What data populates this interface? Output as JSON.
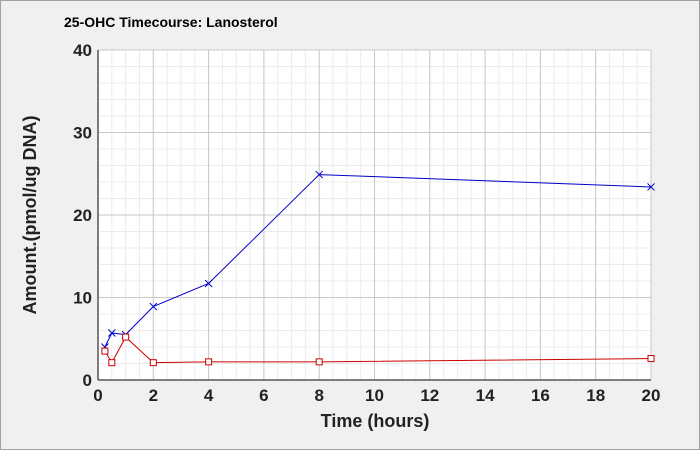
{
  "chart_data": {
    "type": "line",
    "title": "25-OHC Timecourse: Lanosterol",
    "xlabel": "Time (hours)",
    "ylabel": "Amount.(pmol/ug DNA)",
    "xlim": [
      0,
      20
    ],
    "ylim": [
      0,
      40
    ],
    "x_ticks": [
      0,
      2,
      4,
      6,
      8,
      10,
      12,
      14,
      16,
      18,
      20
    ],
    "y_ticks": [
      0,
      10,
      20,
      30,
      40
    ],
    "x_tick_labels": [
      "0",
      "2",
      "4",
      "6",
      "8",
      "10",
      "12",
      "14",
      "16",
      "18",
      "20"
    ],
    "y_tick_labels": [
      "0",
      "10",
      "20",
      "30",
      "40"
    ],
    "grid": true,
    "series": [
      {
        "marker": "x",
        "color": "#0000cc",
        "x": [
          0.25,
          0.5,
          1,
          2,
          4,
          8,
          20
        ],
        "y": [
          4.0,
          5.7,
          5.5,
          8.9,
          11.7,
          24.9,
          23.4
        ]
      },
      {
        "marker": "square",
        "color": "#cc0000",
        "x": [
          0.25,
          0.5,
          1,
          2,
          4,
          8,
          20
        ],
        "y": [
          3.5,
          2.1,
          5.2,
          2.1,
          2.2,
          2.2,
          2.6
        ]
      }
    ]
  }
}
